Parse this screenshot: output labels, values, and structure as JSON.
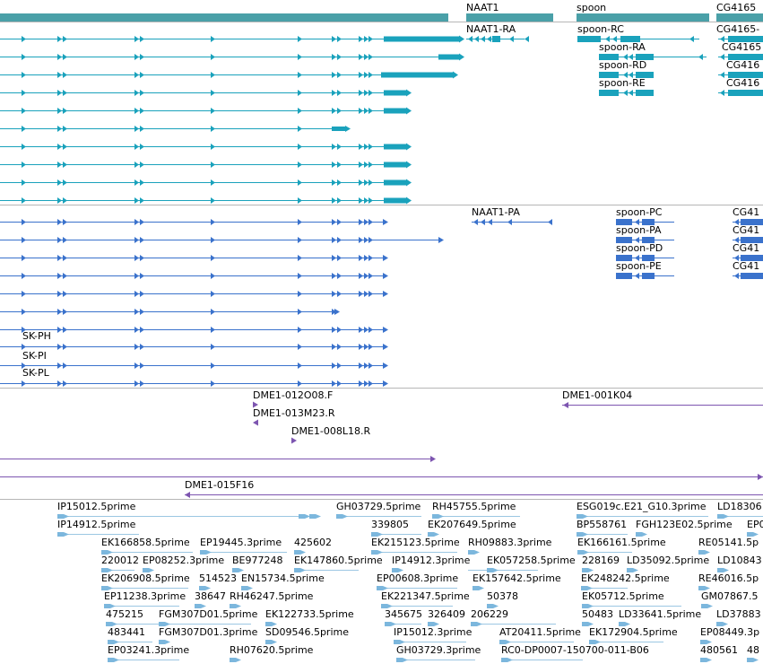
{
  "colors": {
    "gene": "#4aa0a8",
    "transcript": "#1aa2bc",
    "protein": "#3a72cc",
    "clone": "#7d55b0",
    "est": "#7cb7dd",
    "est_line": "#9cc7e3",
    "divider": "#b6b6b6"
  },
  "genes": [
    {
      "id": "gene-bar-left",
      "label": ""
    },
    {
      "id": "gene-naat1",
      "label": "NAAT1"
    },
    {
      "id": "gene-spoon",
      "label": "spoon"
    },
    {
      "id": "gene-cg4165",
      "label": "CG4165"
    }
  ],
  "transcripts": {
    "left_row_count": 10,
    "labels": [
      {
        "id": "naat1-ra",
        "text": "NAAT1-RA"
      },
      {
        "id": "spoon-rc",
        "text": "spoon-RC"
      },
      {
        "id": "spoon-ra",
        "text": "spoon-RA"
      },
      {
        "id": "spoon-rd",
        "text": "spoon-RD"
      },
      {
        "id": "spoon-re",
        "text": "spoon-RE"
      },
      {
        "id": "cg4165-r1",
        "text": "CG4165-"
      },
      {
        "id": "cg4165-r2",
        "text": "CG4165"
      },
      {
        "id": "cg4165-r3",
        "text": "CG416"
      },
      {
        "id": "cg4165-r4",
        "text": "CG416"
      }
    ]
  },
  "proteins": {
    "left_row_count": 10,
    "labels": [
      {
        "id": "naat1-pa",
        "text": "NAAT1-PA"
      },
      {
        "id": "spoon-pc",
        "text": "spoon-PC"
      },
      {
        "id": "spoon-pa",
        "text": "spoon-PA"
      },
      {
        "id": "spoon-pd",
        "text": "spoon-PD"
      },
      {
        "id": "spoon-pe",
        "text": "spoon-PE"
      },
      {
        "id": "sk-ph",
        "text": "SK-PH"
      },
      {
        "id": "sk-pi",
        "text": "SK-PI"
      },
      {
        "id": "sk-pl",
        "text": "SK-PL"
      },
      {
        "id": "cg41-p1",
        "text": "CG41"
      },
      {
        "id": "cg41-p2",
        "text": "CG41"
      },
      {
        "id": "cg41-p3",
        "text": "CG41"
      },
      {
        "id": "cg41-p4",
        "text": "CG41"
      }
    ]
  },
  "clones": [
    {
      "id": "dme1-012o08",
      "text": "DME1-012O08.F"
    },
    {
      "id": "dme1-013m23",
      "text": "DME1-013M23.R"
    },
    {
      "id": "dme1-008l18",
      "text": "DME1-008L18.R"
    },
    {
      "id": "dme1-001k04",
      "text": "DME1-001K04"
    },
    {
      "id": "dme1-015f16",
      "text": "DME1-015F16"
    }
  ],
  "ests": [
    "IP15012.5prime",
    "GH03729.5prime",
    "RH45755.5prime",
    "ESG019c.E21_G10.3prime",
    "LD18306",
    "IP14912.5prime",
    "339805",
    "EK207649.5prime",
    "BP558761",
    "FGH123E02.5prime",
    "EP0",
    "EK166858.5prime",
    "EP19445.3prime",
    "425602",
    "EK215123.5prime",
    "RH09883.3prime",
    "EK166161.5prime",
    "RE05141.5p",
    "220012",
    "EP08252.3prime",
    "BE977248",
    "EK147860.5prime",
    "IP14912.3prime",
    "EK057258.5prime",
    "228169",
    "LD35092.5prime",
    "LD10843",
    "EK206908.5prime",
    "514523",
    "EN15734.5prime",
    "EP00608.3prime",
    "EK157642.5prime",
    "EK248242.5prime",
    "RE46016.5p",
    "EP11238.3prime",
    "38647",
    "RH46247.5prime",
    "EK221347.5prime",
    "50378",
    "EK05712.5prime",
    "GM07867.5",
    "475215",
    "FGM307D01.5prime",
    "EK122733.5prime",
    "345675",
    "326409",
    "206229",
    "50483",
    "LD33641.5prime",
    "LD37883",
    "483441",
    "FGM307D01.3prime",
    "SD09546.5prime",
    "IP15012.3prime",
    "AT20411.5prime",
    "EK172904.5prime",
    "EP08449.3p",
    "EP03241.3prime",
    "RH07620.5prime",
    "GH03729.3prime",
    "RC0-DP0007-150700-011-B06",
    "480561",
    "48"
  ]
}
